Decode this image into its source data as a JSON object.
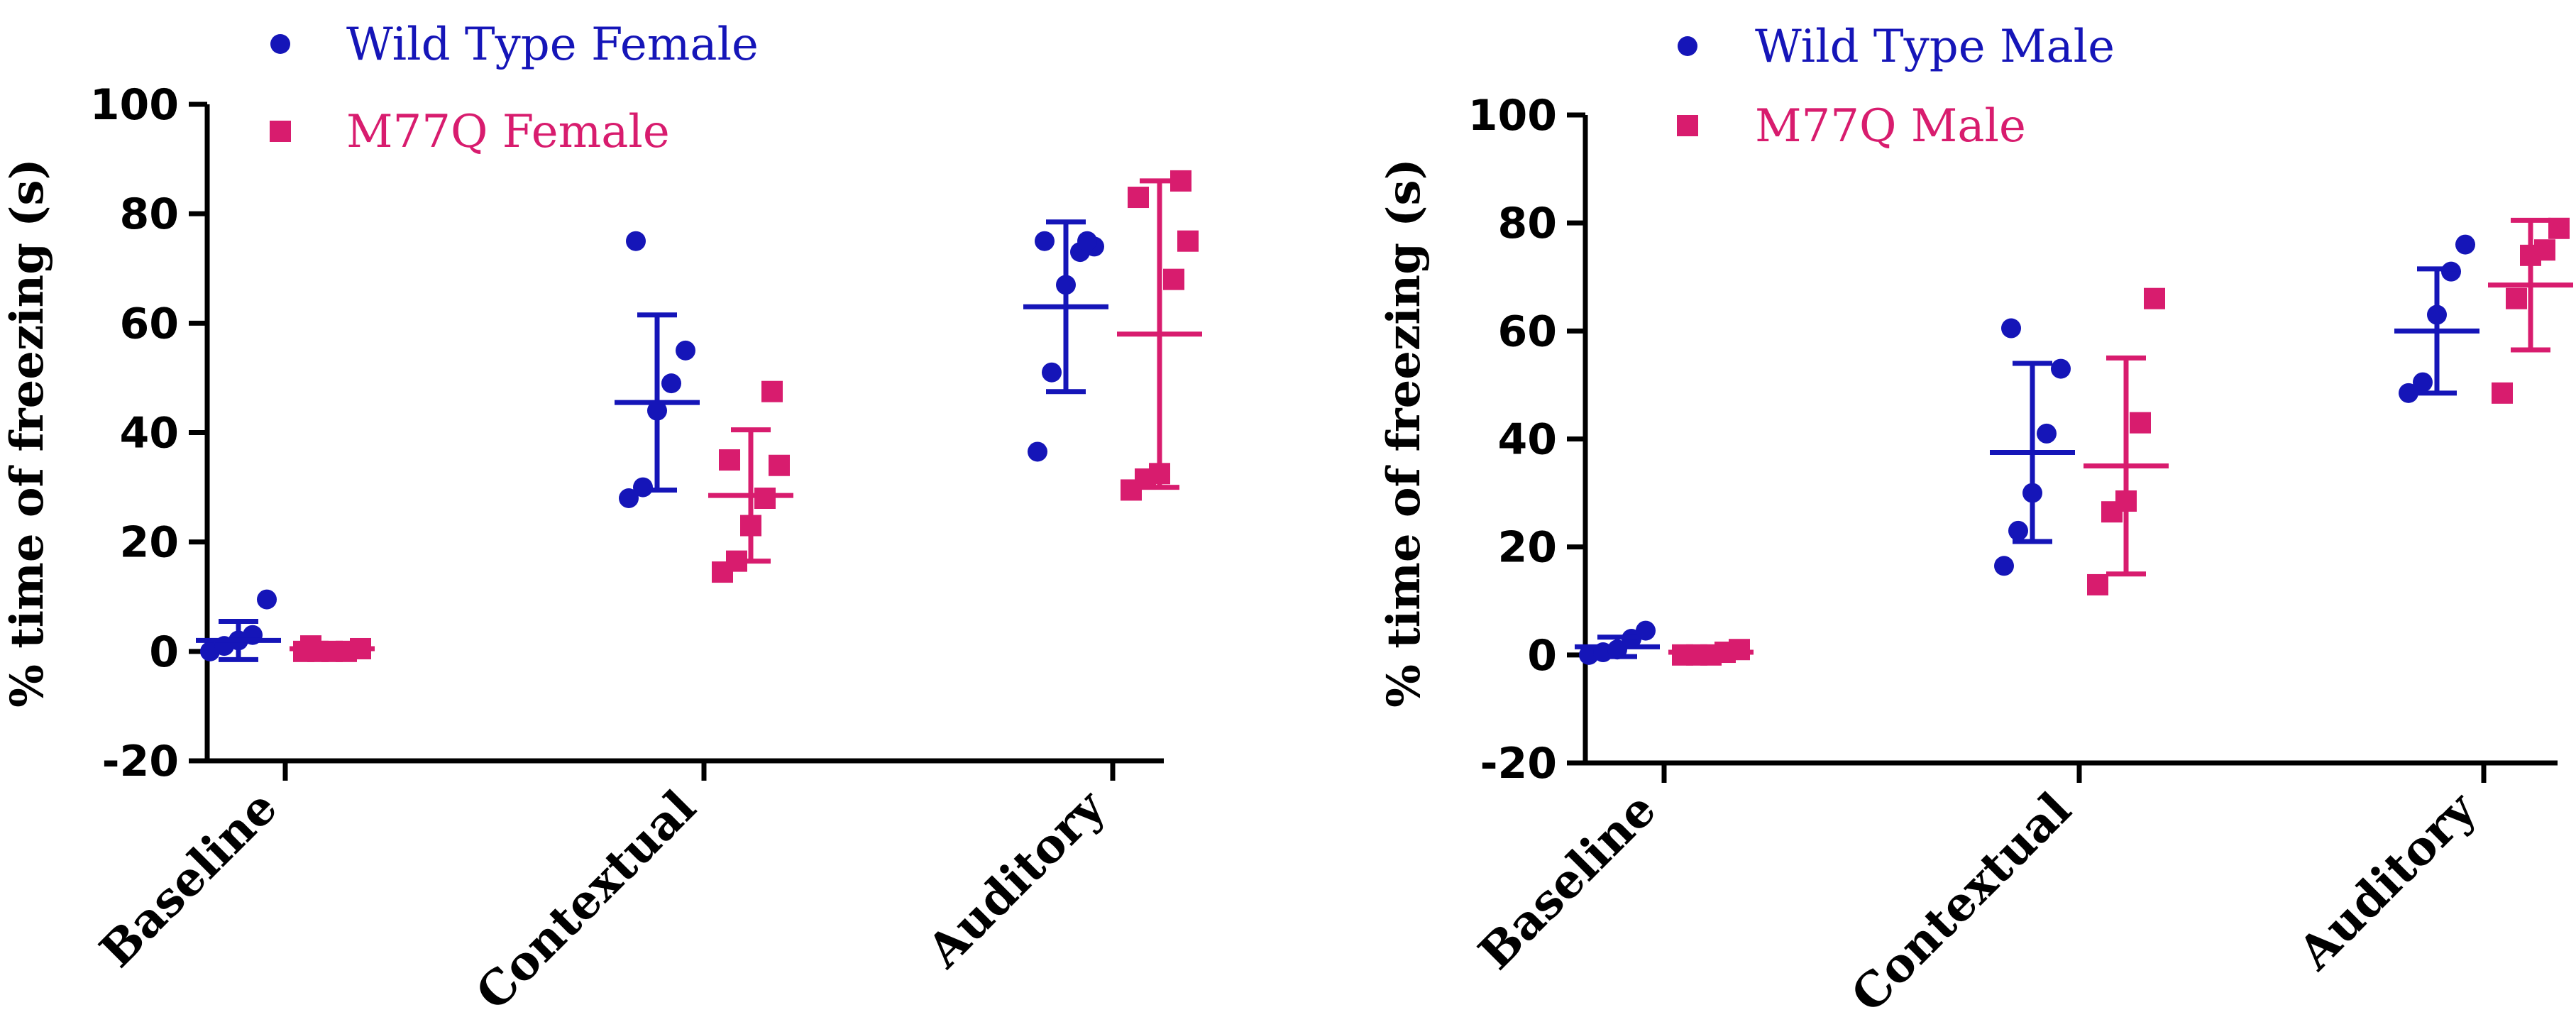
{
  "chart_data": [
    {
      "type": "scatter",
      "subtype": "dot plot with mean and SD",
      "panel": "female",
      "title": "",
      "xlabel": "",
      "ylabel": "% time of freezing (s)",
      "ylim": [
        -20,
        100
      ],
      "yticks": [
        "-20",
        "0",
        "20",
        "40",
        "60",
        "80",
        "100"
      ],
      "categories": [
        "Baseline",
        "Contextual",
        "Auditory"
      ],
      "legend_position": "top-left",
      "series": [
        {
          "name": "Wild Type Female",
          "marker": "circle",
          "color": "#1515b8",
          "points": [
            [
              0,
              1,
              2,
              3,
              9.5
            ],
            [
              28,
              30,
              44,
              49,
              55,
              75
            ],
            [
              36.5,
              51,
              67,
              73,
              74,
              75,
              75
            ]
          ],
          "mean": [
            2,
            45.5,
            63
          ],
          "sd": [
            3.5,
            16,
            15.5
          ]
        },
        {
          "name": "M77Q Female",
          "marker": "square",
          "color": "#d81c6e",
          "points": [
            [
              0,
              0,
              0,
              0,
              0.5,
              1
            ],
            [
              14.5,
              16.5,
              23,
              28,
              34,
              35,
              47.5
            ],
            [
              29.5,
              31.5,
              32.5,
              68,
              75,
              83,
              86
            ]
          ],
          "mean": [
            0.5,
            28.5,
            58
          ],
          "sd": [
            0.5,
            12,
            28
          ]
        }
      ]
    },
    {
      "type": "scatter",
      "subtype": "dot plot with mean and SD",
      "panel": "male",
      "title": "",
      "xlabel": "",
      "ylabel": "% time of freezing (s)",
      "ylim": [
        -20,
        100
      ],
      "yticks": [
        "-20",
        "0",
        "20",
        "40",
        "60",
        "80",
        "100"
      ],
      "categories": [
        "Baseline",
        "Contextual",
        "Auditory"
      ],
      "legend_position": "top-left",
      "series": [
        {
          "name": "Wild Type Male",
          "marker": "circle",
          "color": "#1515b8",
          "points": [
            [
              0,
              0.5,
              1,
              3,
              4.5
            ],
            [
              16.5,
              23,
              30,
              41,
              53,
              60.5
            ],
            [
              48.5,
              50.5,
              63,
              71,
              76
            ]
          ],
          "mean": [
            1.5,
            37.5,
            60
          ],
          "sd": [
            1.8,
            16.5,
            11.5
          ]
        },
        {
          "name": "M77Q Male",
          "marker": "square",
          "color": "#d81c6e",
          "points": [
            [
              0,
              0,
              0,
              0.5,
              1
            ],
            [
              13,
              26.5,
              28.5,
              43,
              66
            ],
            [
              48.5,
              66,
              74,
              75,
              79
            ]
          ],
          "mean": [
            0.5,
            35,
            68.5
          ],
          "sd": [
            0.5,
            20,
            12
          ]
        }
      ]
    }
  ]
}
